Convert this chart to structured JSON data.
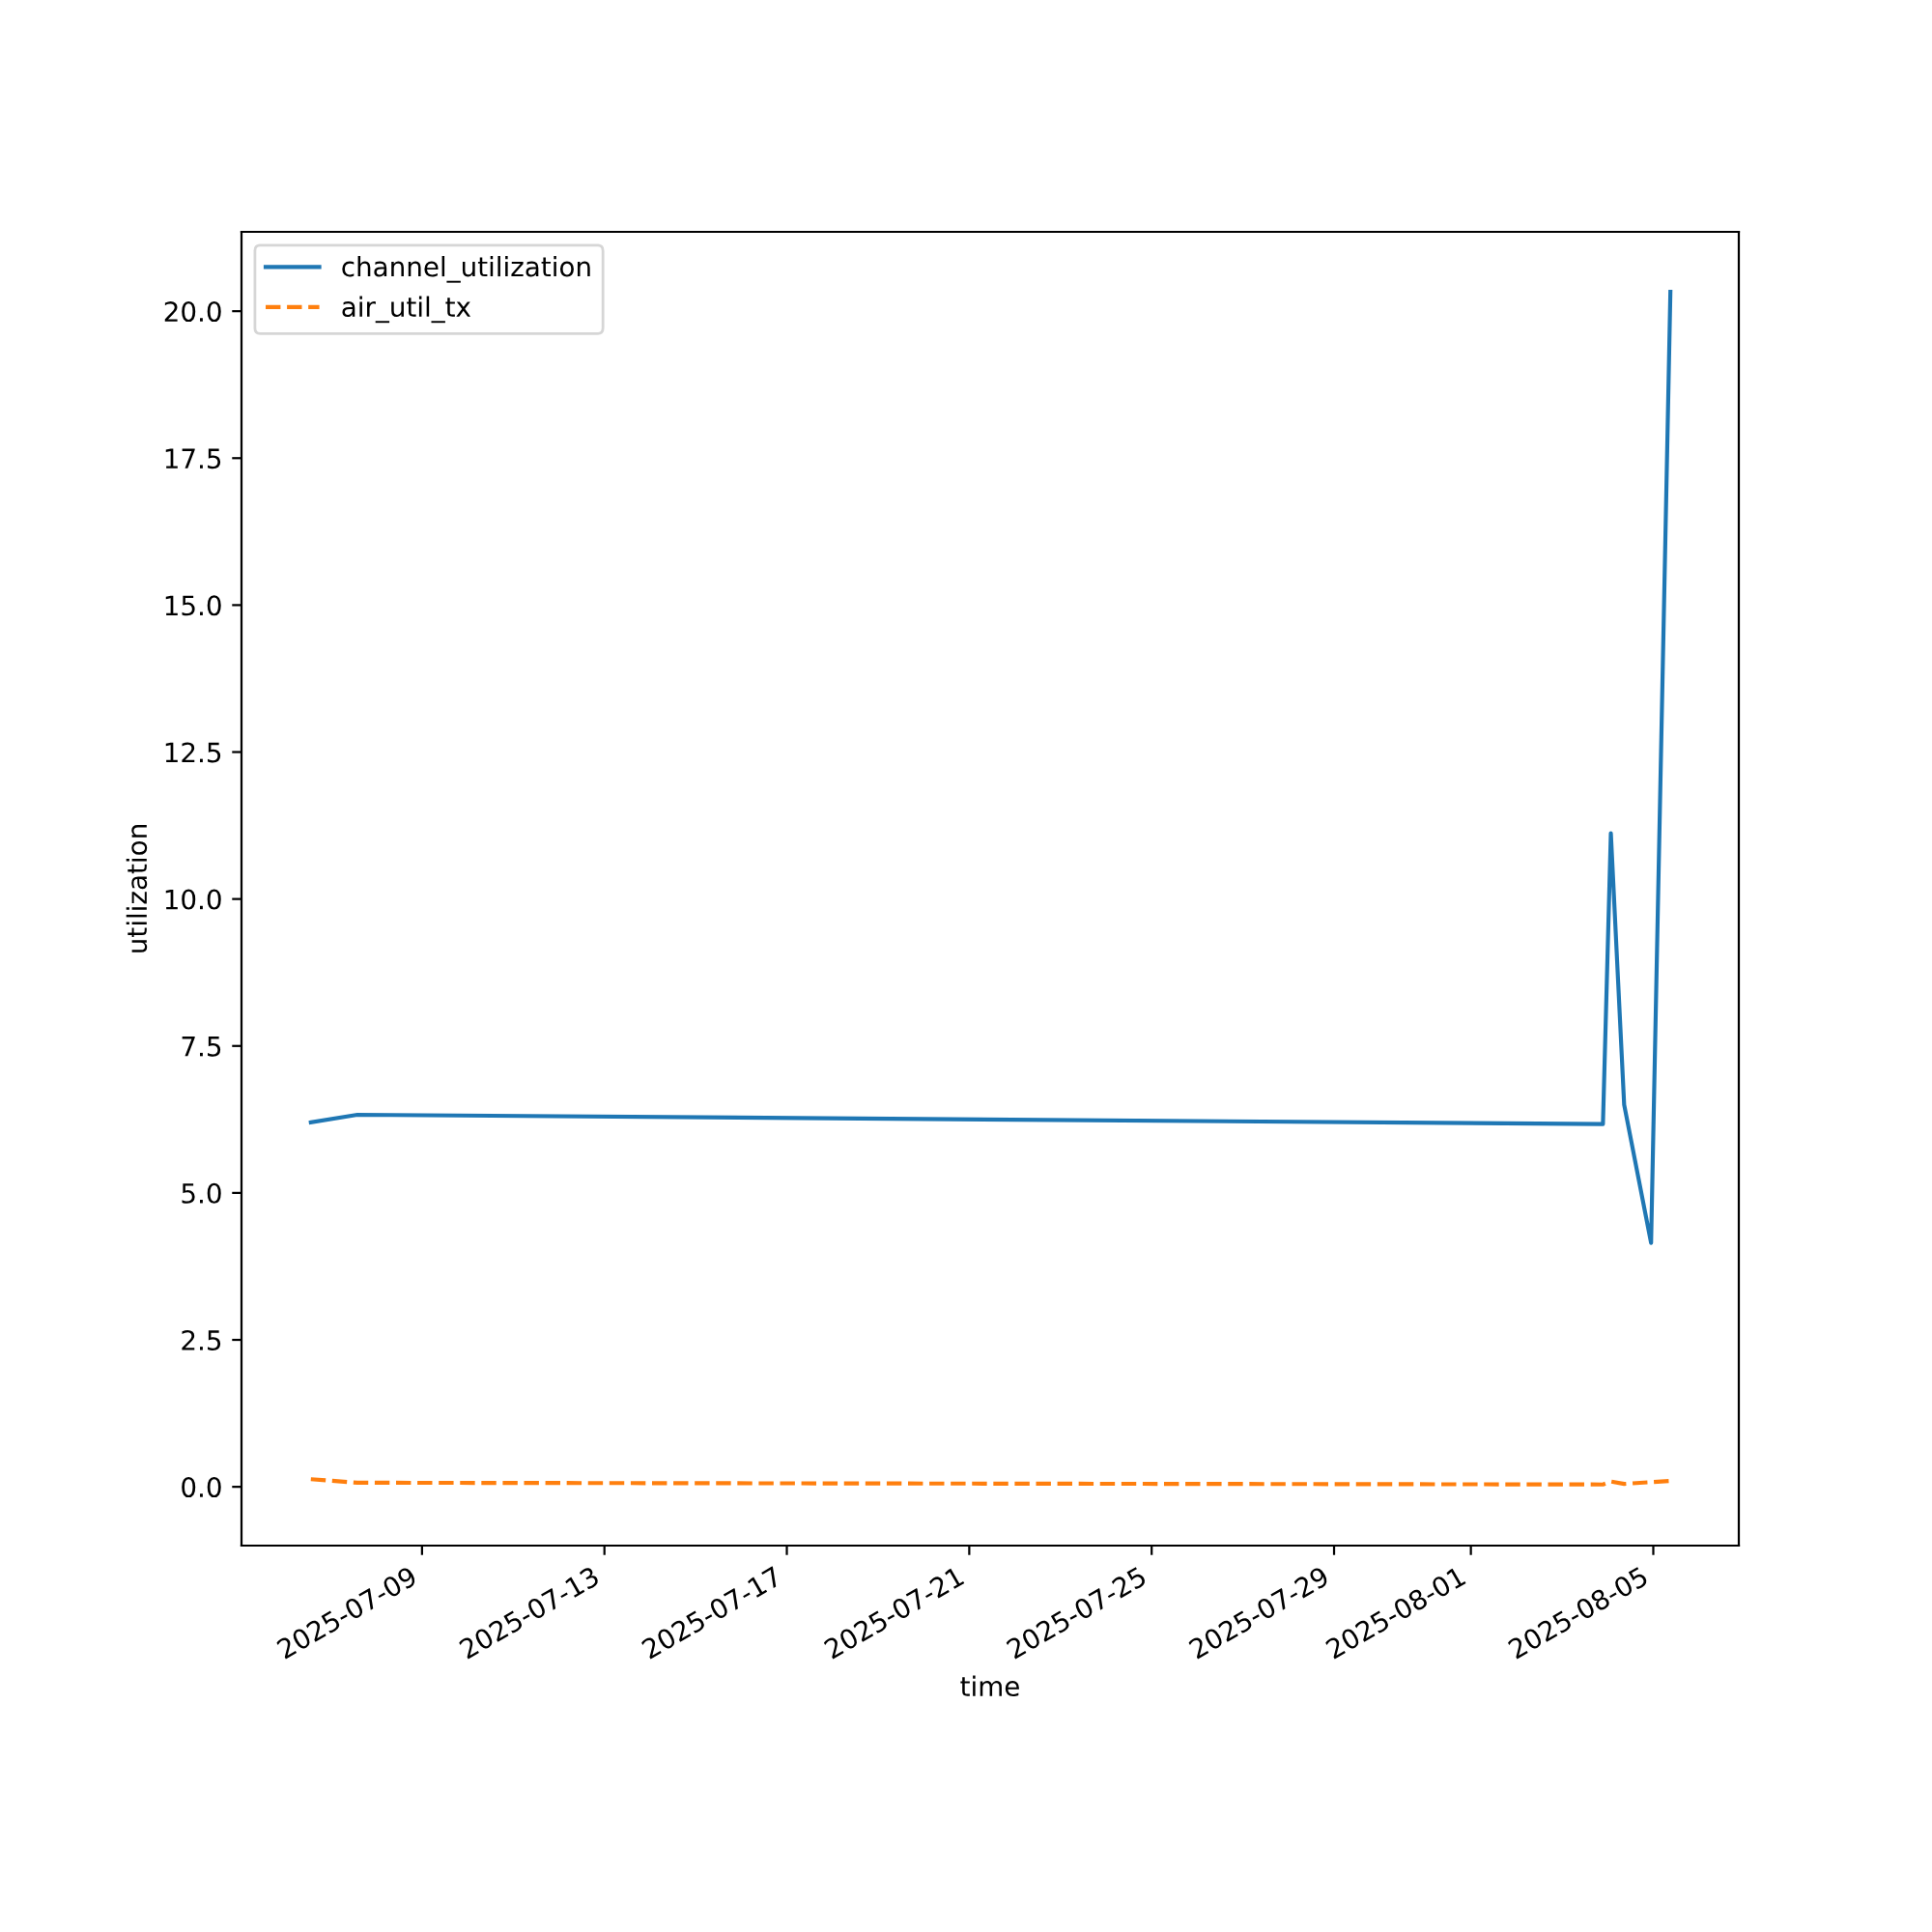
{
  "chart_data": {
    "type": "line",
    "xlabel": "time",
    "ylabel": "utilization",
    "x": [
      "2025-07-06T13:30",
      "2025-07-07T14:00",
      "2025-08-03T21:30",
      "2025-08-04T01:40",
      "2025-08-04T08:40",
      "2025-08-04T22:50",
      "2025-08-05T09:00"
    ],
    "series": [
      {
        "name": "channel_utilization",
        "color": "#1f77b4",
        "line_style": "solid",
        "values": [
          6.2,
          6.33,
          6.17,
          11.12,
          6.5,
          4.15,
          20.33
        ]
      },
      {
        "name": "air_util_tx",
        "color": "#ff7f0e",
        "line_style": "dashed",
        "values": [
          0.13,
          0.07,
          0.04,
          0.09,
          0.05,
          0.08,
          0.1
        ]
      }
    ],
    "xlim": [
      "2025-07-05T01:00",
      "2025-08-06T21:00"
    ],
    "xticks": [
      "2025-07-09",
      "2025-07-13",
      "2025-07-17",
      "2025-07-21",
      "2025-07-25",
      "2025-07-29",
      "2025-08-01",
      "2025-08-05"
    ],
    "ylim": [
      -1.0,
      21.35
    ],
    "yticks": [
      {
        "value": 0,
        "label": "0.0"
      },
      {
        "value": 2.5,
        "label": "2.5"
      },
      {
        "value": 5,
        "label": "5.0"
      },
      {
        "value": 7.5,
        "label": "7.5"
      },
      {
        "value": 10,
        "label": "10.0"
      },
      {
        "value": 12.5,
        "label": "12.5"
      },
      {
        "value": 15,
        "label": "15.0"
      },
      {
        "value": 17.5,
        "label": "17.5"
      },
      {
        "value": 20,
        "label": "20.0"
      }
    ],
    "grid": false,
    "legend": "top left"
  }
}
